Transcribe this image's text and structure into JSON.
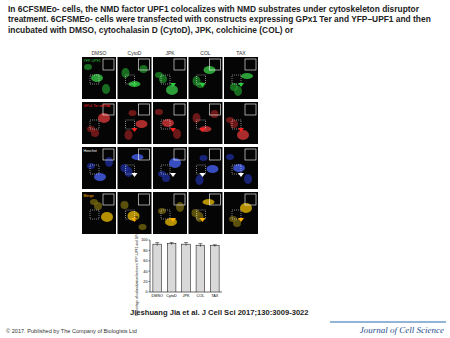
{
  "header": {
    "title": "In 6CFSMEo- cells, the NMD factor UPF1 colocalizes with NMD substrates under cytoskeleton disruptor treatment. 6CFSMEo- cells were transfected with constructs expressing GPx1 Ter and YFP–UPF1 and then incubated with DMSO, cytochalasin D (CytoD), JPK, colchicine (COL) or"
  },
  "panels": {
    "columns": [
      "DMSO",
      "CytoD",
      "JPK",
      "COL",
      "TAX"
    ],
    "rows": [
      "YFP-UPF1",
      "GPx1 Ter mRNA",
      "Hoechst",
      "Merge"
    ]
  },
  "chart_data": {
    "type": "bar",
    "categories": [
      "DMSO",
      "CytoD",
      "JPK",
      "COL",
      "TAX"
    ],
    "values": [
      92,
      93,
      92,
      90,
      89
    ],
    "errors": [
      3,
      2,
      3,
      3,
      2
    ],
    "y_label": "Percentage of colocalization between YFP–UPF1 and GPx1 Ter mRNA",
    "ylim": [
      0,
      100
    ],
    "yticks": [
      0,
      20,
      40,
      60,
      80,
      100
    ],
    "color": "#d9d9d9"
  },
  "footer": {
    "citation": "Jieshuang Jia et al. J Cell Sci 2017;130:3009-3022",
    "copyright": "© 2017. Published by The Company of Biologists Ltd",
    "journal": "Journal of Cell Science"
  }
}
